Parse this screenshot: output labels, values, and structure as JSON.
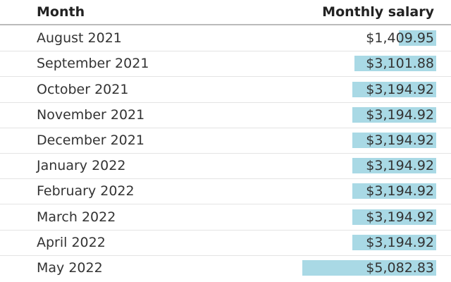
{
  "table": {
    "columns": [
      "Month",
      "Monthly salary"
    ],
    "rows": [
      {
        "month": "August 2021",
        "value": 1409.95,
        "label": "$1,409.95"
      },
      {
        "month": "September 2021",
        "value": 3101.88,
        "label": "$3,101.88"
      },
      {
        "month": "October 2021",
        "value": 3194.92,
        "label": "$3,194.92"
      },
      {
        "month": "November 2021",
        "value": 3194.92,
        "label": "$3,194.92"
      },
      {
        "month": "December 2021",
        "value": 3194.92,
        "label": "$3,194.92"
      },
      {
        "month": "January 2022",
        "value": 3194.92,
        "label": "$3,194.92"
      },
      {
        "month": "February 2022",
        "value": 3194.92,
        "label": "$3,194.92"
      },
      {
        "month": "March 2022",
        "value": 3194.92,
        "label": "$3,194.92"
      },
      {
        "month": "April 2022",
        "value": 3194.92,
        "label": "$3,194.92"
      },
      {
        "month": "May 2022",
        "value": 5082.83,
        "label": "$5,082.83"
      }
    ],
    "bar_color": "#a9d9e5"
  }
}
